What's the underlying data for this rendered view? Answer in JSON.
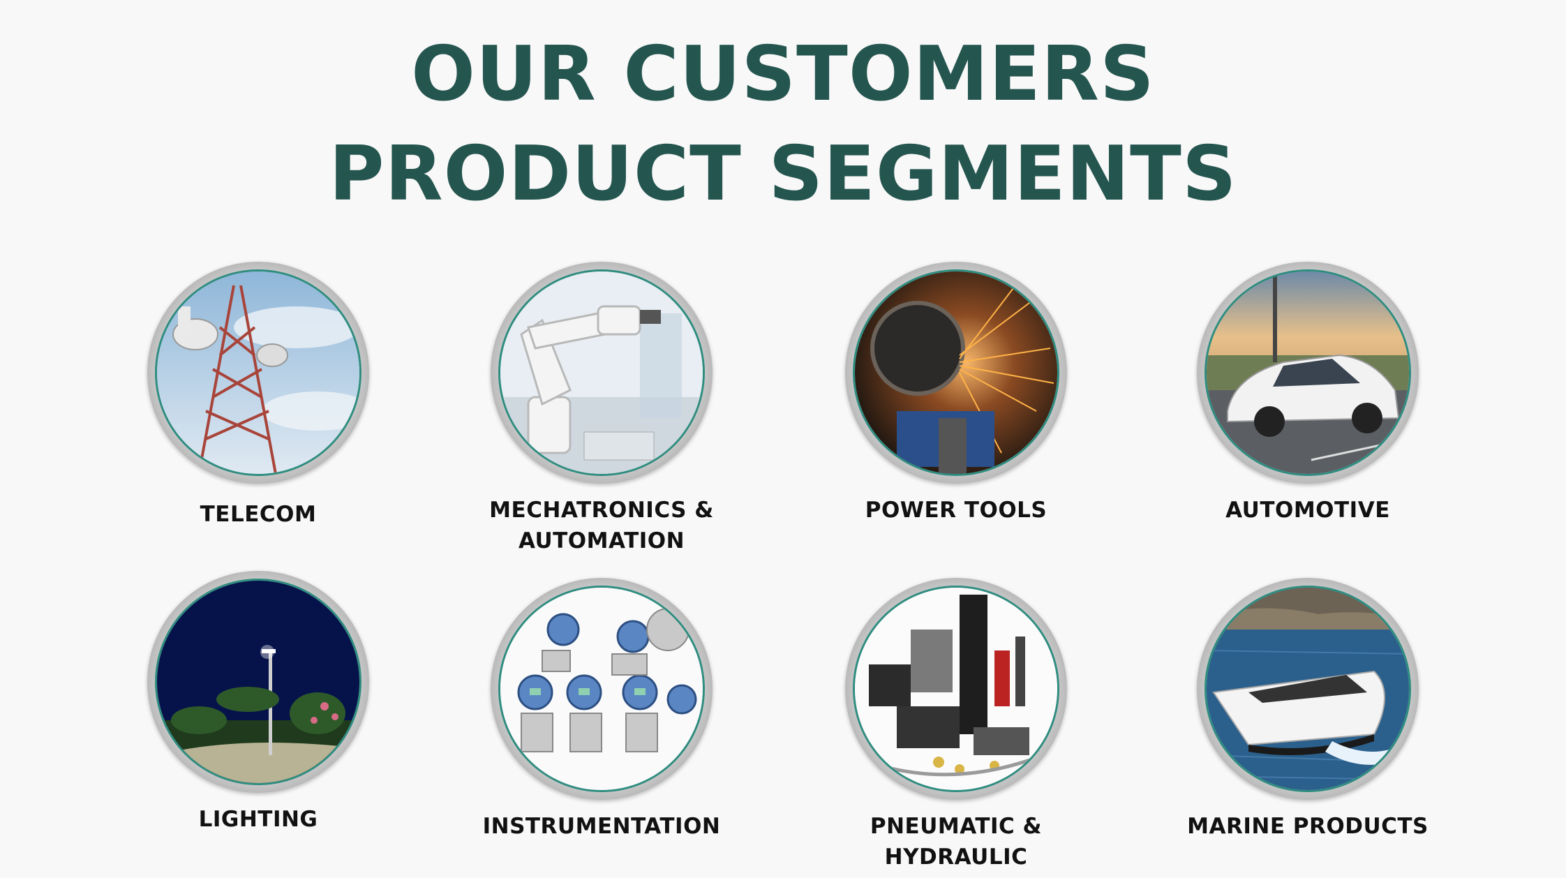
{
  "heading": {
    "line1": "OUR CUSTOMERS",
    "line2": "PRODUCT SEGMENTS"
  },
  "segments": [
    {
      "label_lines": [
        "TELECOM"
      ],
      "icon": "telecom-tower-photo"
    },
    {
      "label_lines": [
        "MECHATRONICS &",
        "AUTOMATION"
      ],
      "icon": "robot-arm-photo"
    },
    {
      "label_lines": [
        "POWER TOOLS"
      ],
      "icon": "grinder-sparks-photo"
    },
    {
      "label_lines": [
        "AUTOMOTIVE"
      ],
      "icon": "car-photo"
    },
    {
      "label_lines": [
        "LIGHTING"
      ],
      "icon": "street-lamp-photo"
    },
    {
      "label_lines": [
        "INSTRUMENTATION"
      ],
      "icon": "pressure-transmitter-photo"
    },
    {
      "label_lines": [
        "PNEUMATIC &",
        "HYDRAULIC"
      ],
      "icon": "hydraulic-parts-photo"
    },
    {
      "label_lines": [
        "MARINE PRODUCTS"
      ],
      "icon": "motor-yacht-photo"
    }
  ],
  "colors": {
    "title": "#24554f",
    "ring_accent": "#2f8d80",
    "background": "#f8f8f8"
  }
}
